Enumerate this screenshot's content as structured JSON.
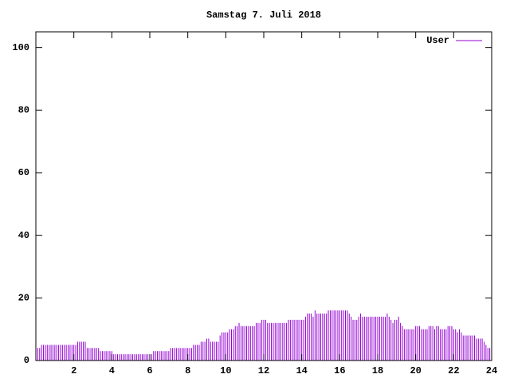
{
  "chart_data": {
    "type": "impulse",
    "title": "Samstag 7. Juli 2018",
    "series": [
      {
        "name": "User",
        "color": "#9400d3",
        "x": [
          0.1,
          0.2,
          0.3,
          0.4,
          0.5,
          0.6,
          0.7,
          0.8,
          0.9,
          1.0,
          1.1,
          1.2,
          1.3,
          1.4,
          1.5,
          1.6,
          1.7,
          1.8,
          1.9,
          2.0,
          2.1,
          2.2,
          2.3,
          2.4,
          2.5,
          2.6,
          2.7,
          2.8,
          2.9,
          3.0,
          3.1,
          3.2,
          3.3,
          3.4,
          3.5,
          3.6,
          3.7,
          3.8,
          3.9,
          4.0,
          4.1,
          4.2,
          4.3,
          4.4,
          4.5,
          4.6,
          4.7,
          4.8,
          4.9,
          5.0,
          5.1,
          5.2,
          5.3,
          5.4,
          5.5,
          5.6,
          5.7,
          5.8,
          5.9,
          6.0,
          6.1,
          6.2,
          6.3,
          6.4,
          6.5,
          6.6,
          6.7,
          6.8,
          6.9,
          7.0,
          7.1,
          7.2,
          7.3,
          7.4,
          7.5,
          7.6,
          7.7,
          7.8,
          7.9,
          8.0,
          8.1,
          8.2,
          8.3,
          8.4,
          8.5,
          8.6,
          8.7,
          8.8,
          8.9,
          9.0,
          9.1,
          9.2,
          9.3,
          9.4,
          9.5,
          9.6,
          9.7,
          9.8,
          9.9,
          10.0,
          10.1,
          10.2,
          10.3,
          10.4,
          10.5,
          10.6,
          10.7,
          10.8,
          10.9,
          11.0,
          11.1,
          11.2,
          11.3,
          11.4,
          11.5,
          11.6,
          11.7,
          11.8,
          11.9,
          12.0,
          12.1,
          12.2,
          12.3,
          12.4,
          12.5,
          12.6,
          12.7,
          12.8,
          12.9,
          13.0,
          13.1,
          13.2,
          13.3,
          13.4,
          13.5,
          13.6,
          13.7,
          13.8,
          13.9,
          14.0,
          14.1,
          14.2,
          14.3,
          14.4,
          14.5,
          14.6,
          14.7,
          14.8,
          14.9,
          15.0,
          15.1,
          15.2,
          15.3,
          15.4,
          15.5,
          15.6,
          15.7,
          15.8,
          15.9,
          16.0,
          16.1,
          16.2,
          16.3,
          16.4,
          16.5,
          16.6,
          16.7,
          16.8,
          16.9,
          17.0,
          17.1,
          17.2,
          17.3,
          17.4,
          17.5,
          17.6,
          17.7,
          17.8,
          17.9,
          18.0,
          18.1,
          18.2,
          18.3,
          18.4,
          18.5,
          18.6,
          18.7,
          18.8,
          18.9,
          19.0,
          19.1,
          19.2,
          19.3,
          19.4,
          19.5,
          19.6,
          19.7,
          19.8,
          19.9,
          20.0,
          20.1,
          20.2,
          20.3,
          20.4,
          20.5,
          20.6,
          20.7,
          20.8,
          20.9,
          21.0,
          21.1,
          21.2,
          21.3,
          21.4,
          21.5,
          21.6,
          21.7,
          21.8,
          21.9,
          22.0,
          22.1,
          22.2,
          22.3,
          22.4,
          22.5,
          22.6,
          22.7,
          22.8,
          22.9,
          23.0,
          23.1,
          23.2,
          23.3,
          23.4,
          23.5,
          23.6,
          23.7,
          23.8,
          23.9,
          24.0
        ],
        "values": [
          4,
          4,
          5,
          5,
          5,
          5,
          5,
          5,
          5,
          5,
          5,
          5,
          5,
          5,
          5,
          5,
          5,
          5,
          5,
          5,
          5,
          6,
          6,
          6,
          6,
          6,
          4,
          4,
          4,
          4,
          4,
          4,
          4,
          3,
          3,
          3,
          3,
          3,
          3,
          3,
          2,
          2,
          2,
          2,
          2,
          2,
          2,
          2,
          2,
          2,
          2,
          2,
          2,
          2,
          2,
          2,
          2,
          2,
          2,
          2,
          2,
          3,
          3,
          3,
          3,
          3,
          3,
          3,
          3,
          3,
          4,
          4,
          4,
          4,
          4,
          4,
          4,
          4,
          4,
          4,
          4,
          4,
          5,
          5,
          5,
          5,
          6,
          6,
          6,
          7,
          7,
          6,
          6,
          6,
          6,
          6,
          8,
          9,
          9,
          9,
          9,
          10,
          10,
          10,
          11,
          11,
          12,
          11,
          11,
          11,
          11,
          11,
          11,
          11,
          11,
          12,
          12,
          12,
          13,
          13,
          13,
          12,
          12,
          12,
          12,
          12,
          12,
          12,
          12,
          12,
          12,
          12,
          13,
          13,
          13,
          13,
          13,
          13,
          13,
          13,
          13,
          14,
          15,
          15,
          15,
          14,
          16,
          15,
          15,
          15,
          15,
          15,
          15,
          16,
          16,
          16,
          16,
          16,
          16,
          16,
          16,
          16,
          16,
          16,
          15,
          14,
          13,
          13,
          13,
          14,
          15,
          14,
          14,
          14,
          14,
          14,
          14,
          14,
          14,
          14,
          14,
          14,
          14,
          14,
          15,
          14,
          13,
          12,
          13,
          13,
          14,
          12,
          11,
          10,
          10,
          10,
          10,
          10,
          10,
          11,
          11,
          11,
          10,
          10,
          10,
          10,
          11,
          11,
          11,
          10,
          11,
          11,
          10,
          10,
          10,
          10,
          11,
          11,
          11,
          10,
          10,
          9,
          10,
          9,
          8,
          8,
          8,
          8,
          8,
          8,
          8,
          7,
          7,
          7,
          7,
          6,
          5,
          4,
          4,
          4
        ]
      }
    ],
    "xlim": [
      0,
      24
    ],
    "xticks": [
      2,
      4,
      6,
      8,
      10,
      12,
      14,
      16,
      18,
      20,
      22,
      24
    ],
    "ylim": [
      0,
      105
    ],
    "yticks": [
      0,
      20,
      40,
      60,
      80,
      100
    ],
    "legend": "top-right"
  }
}
